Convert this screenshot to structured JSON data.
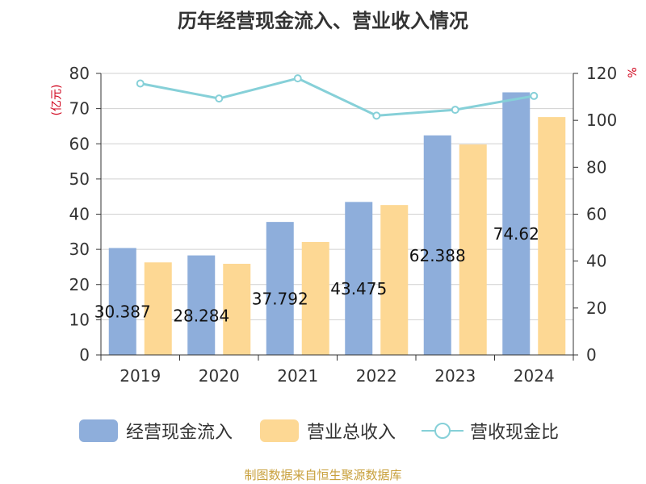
{
  "chart_data": {
    "type": "bar",
    "title": "历年经营现金流入、营业收入情况",
    "categories": [
      "2019",
      "2020",
      "2021",
      "2022",
      "2023",
      "2024"
    ],
    "y_left_unit": "(亿元)",
    "y_right_unit": "%",
    "y_left_range": [
      0,
      80
    ],
    "y_left_ticks": [
      0,
      10,
      20,
      30,
      40,
      50,
      60,
      70,
      80
    ],
    "y_right_range": [
      0,
      120
    ],
    "y_right_ticks": [
      0,
      20,
      40,
      60,
      80,
      100,
      120
    ],
    "grid": true,
    "legend_position": "bottom",
    "series": [
      {
        "name": "经营现金流入",
        "type": "bar",
        "axis": "left",
        "color": "#8eaedb",
        "values": [
          30.387,
          28.284,
          37.792,
          43.475,
          62.388,
          74.62
        ],
        "labels": [
          "30.387",
          "28.284",
          "37.792",
          "43.475",
          "62.388",
          "74.62"
        ]
      },
      {
        "name": "营业总收入",
        "type": "bar",
        "axis": "left",
        "color": "#fdd894",
        "values": [
          26.3,
          25.9,
          32.1,
          42.6,
          59.8,
          67.6
        ]
      },
      {
        "name": "营收现金比",
        "type": "line",
        "axis": "right",
        "color": "#86d0d8",
        "values": [
          115.7,
          109.3,
          117.9,
          102.0,
          104.5,
          110.4
        ]
      }
    ]
  },
  "source": "制图数据来自恒生聚源数据库"
}
